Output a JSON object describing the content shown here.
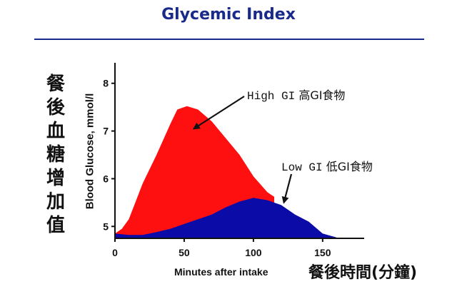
{
  "header": {
    "title": "Glycemic Index"
  },
  "chart_data": {
    "type": "area",
    "title": "Glycemic Index",
    "xlabel": "Minutes after intake",
    "xlabel_cjk": "餐後時間(分鐘)",
    "ylabel": "Blood Glucose, mmol/l",
    "ylabel_cjk": "餐後血糖增加值",
    "xlim": [
      0,
      180
    ],
    "ylim": [
      4.75,
      8.4
    ],
    "x_ticks": [
      0,
      50,
      100,
      150
    ],
    "y_ticks": [
      5,
      6,
      7,
      8
    ],
    "grid": false,
    "series": [
      {
        "name": "High GI",
        "color": "#ff1010",
        "points": [
          [
            0,
            4.85
          ],
          [
            5,
            4.95
          ],
          [
            10,
            5.15
          ],
          [
            20,
            5.9
          ],
          [
            30,
            6.5
          ],
          [
            40,
            7.15
          ],
          [
            45,
            7.45
          ],
          [
            52,
            7.52
          ],
          [
            60,
            7.45
          ],
          [
            70,
            7.2
          ],
          [
            80,
            6.85
          ],
          [
            90,
            6.5
          ],
          [
            100,
            6.05
          ],
          [
            110,
            5.72
          ],
          [
            115,
            5.62
          ]
        ]
      },
      {
        "name": "Low GI",
        "color": "#0b0ba8",
        "points": [
          [
            0,
            4.85
          ],
          [
            10,
            4.82
          ],
          [
            20,
            4.82
          ],
          [
            30,
            4.88
          ],
          [
            40,
            4.95
          ],
          [
            50,
            5.05
          ],
          [
            60,
            5.15
          ],
          [
            70,
            5.25
          ],
          [
            80,
            5.4
          ],
          [
            90,
            5.52
          ],
          [
            100,
            5.6
          ],
          [
            110,
            5.55
          ],
          [
            120,
            5.45
          ],
          [
            130,
            5.25
          ],
          [
            140,
            5.1
          ],
          [
            150,
            4.85
          ],
          [
            160,
            4.77
          ]
        ]
      }
    ],
    "annotations": [
      {
        "series": "High GI",
        "text_en": "High GI",
        "text_cjk": "高GI食物",
        "point_to": [
          57,
          7.05
        ]
      },
      {
        "series": "Low GI",
        "text_en": "Low GI",
        "text_cjk": "低GI食物",
        "point_to": [
          122,
          5.5
        ]
      }
    ]
  }
}
